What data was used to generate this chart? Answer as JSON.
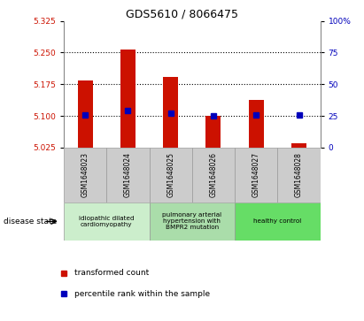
{
  "title": "GDS5610 / 8066475",
  "samples": [
    "GSM1648023",
    "GSM1648024",
    "GSM1648025",
    "GSM1648026",
    "GSM1648027",
    "GSM1648028"
  ],
  "bar_values": [
    5.185,
    5.258,
    5.192,
    5.101,
    5.138,
    5.035
  ],
  "bar_bottom": 5.025,
  "percentile_values_left": [
    5.103,
    5.113,
    5.107,
    5.101,
    5.103,
    5.103
  ],
  "ylim_left": [
    5.025,
    5.325
  ],
  "ylim_right": [
    0,
    100
  ],
  "yticks_left": [
    5.025,
    5.1,
    5.175,
    5.25,
    5.325
  ],
  "yticks_right": [
    0,
    25,
    50,
    75,
    100
  ],
  "bar_color": "#cc1100",
  "percentile_color": "#0000bb",
  "grid_color": "#000000",
  "disease_groups": [
    {
      "label": "idiopathic dilated\ncardiomyopathy",
      "indices": [
        0,
        1
      ],
      "color": "#cceecc"
    },
    {
      "label": "pulmonary arterial\nhypertension with\nBMPR2 mutation",
      "indices": [
        2,
        3
      ],
      "color": "#aaddaa"
    },
    {
      "label": "healthy control",
      "indices": [
        4,
        5
      ],
      "color": "#66dd66"
    }
  ],
  "legend_items": [
    {
      "label": "transformed count",
      "color": "#cc1100"
    },
    {
      "label": "percentile rank within the sample",
      "color": "#0000bb"
    }
  ],
  "disease_state_label": "disease state",
  "tick_color_left": "#cc1100",
  "tick_color_right": "#0000bb",
  "background_fig": "#ffffff",
  "sample_box_color": "#cccccc",
  "sample_box_edge": "#999999"
}
